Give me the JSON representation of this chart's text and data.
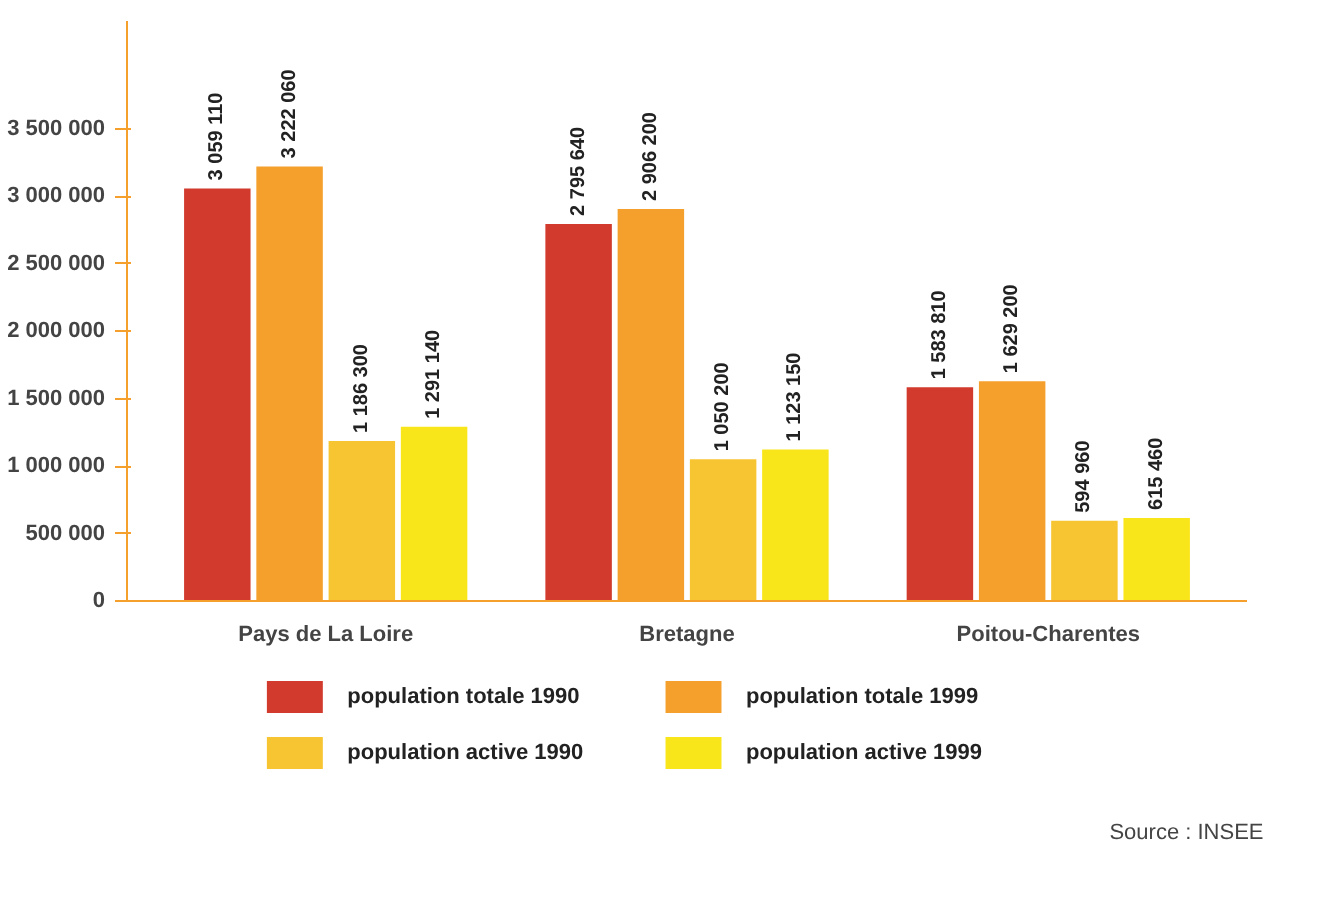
{
  "chart_data": {
    "type": "bar",
    "categories": [
      "Pays de La Loire",
      "Bretagne",
      "Poitou-Charentes"
    ],
    "series": [
      {
        "name": "population totale 1990",
        "color": "#d23a2e",
        "values": [
          3059110,
          2795640,
          1583810
        ],
        "value_labels": [
          "3 059 110",
          "2 795 640",
          "1 583 810"
        ]
      },
      {
        "name": "population totale 1999",
        "color": "#f5a02c",
        "values": [
          3222060,
          2906200,
          1629200
        ],
        "value_labels": [
          "3 222 060",
          "2 906 200",
          "1 629 200"
        ]
      },
      {
        "name": "population active 1990",
        "color": "#f7c531",
        "values": [
          1186300,
          1050200,
          594960
        ],
        "value_labels": [
          "1 186 300",
          "1 050 200",
          "594 960"
        ]
      },
      {
        "name": "population active 1999",
        "color": "#f9e61a",
        "values": [
          1291140,
          1123150,
          615460
        ],
        "value_labels": [
          "1 291 140",
          "1 123 150",
          "615 460"
        ]
      }
    ],
    "ylim": [
      0,
      4300000
    ],
    "yticks": [
      0,
      {
        "value": 500000,
        "label": "500 000"
      },
      {
        "value": 1000000,
        "label": "1 000 000"
      },
      {
        "value": 1500000,
        "label": "1 500 000"
      },
      {
        "value": 2000000,
        "label": "2 000 000"
      },
      {
        "value": 2500000,
        "label": "2 500 000"
      },
      {
        "value": 3000000,
        "label": "3 000 000"
      },
      {
        "value": 3500000,
        "label": "3 500 000"
      }
    ],
    "grid": false,
    "legend": "bottom",
    "annotations": [
      "Source : INSEE"
    ]
  }
}
